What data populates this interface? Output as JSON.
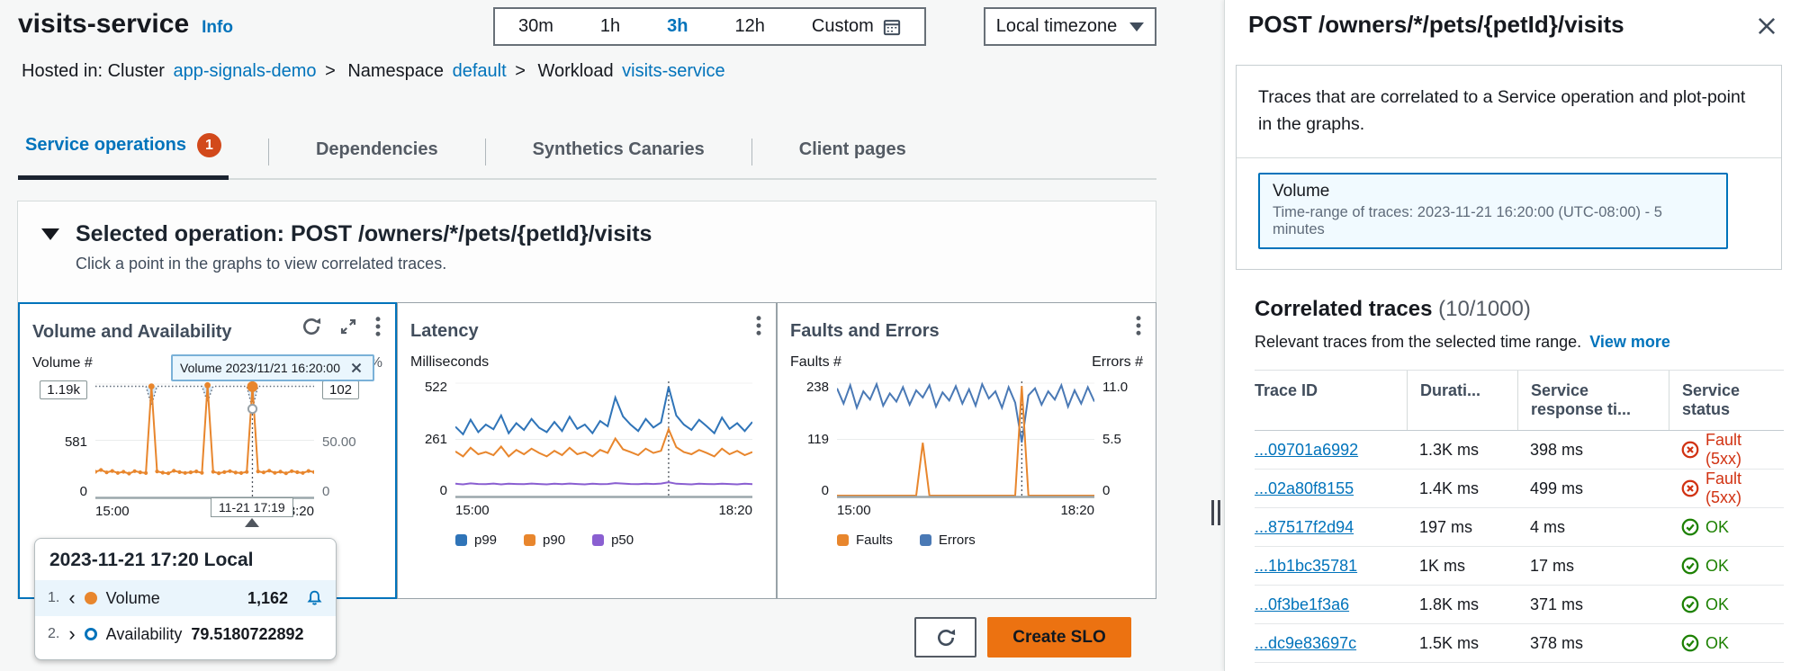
{
  "header": {
    "title": "visits-service",
    "info_link": "Info"
  },
  "time_controls": {
    "ranges": [
      "30m",
      "1h",
      "3h",
      "12h"
    ],
    "active_range": "3h",
    "custom_label": "Custom",
    "timezone_label": "Local timezone"
  },
  "breadcrumb": {
    "hosted_in": "Hosted in: Cluster",
    "cluster": "app-signals-demo",
    "sep": ">",
    "namespace_label": "Namespace",
    "namespace": "default",
    "workload_label": "Workload",
    "workload": "visits-service"
  },
  "tabs": [
    {
      "label": "Service operations",
      "badge": "1"
    },
    {
      "label": "Dependencies"
    },
    {
      "label": "Synthetics Canaries"
    },
    {
      "label": "Client pages"
    }
  ],
  "operation_section": {
    "heading": "Selected operation: POST /owners/*/pets/{petId}/visits",
    "subheading": "Click a point in the graphs to view correlated traces."
  },
  "footer_actions": {
    "create_slo": "Create SLO"
  },
  "tooltip": {
    "header": "2023-11-21 17:20 Local",
    "rows": [
      {
        "index": "1.",
        "chevron": "‹",
        "series": "Volume",
        "value": "1,162"
      },
      {
        "index": "2.",
        "chevron": "›",
        "series": "Availability",
        "value": "79.5180722892"
      }
    ]
  },
  "panel": {
    "title": "POST /owners/*/pets/{petId}/visits",
    "description": "Traces that are correlated to a Service operation and plot-point in the graphs.",
    "selection": {
      "metric": "Volume",
      "time_range": "Time-range of traces: 2023-11-21 16:20:00 (UTC-08:00) - 5 minutes"
    },
    "correlated": {
      "heading": "Correlated traces",
      "count": "(10/1000)",
      "subtext": "Relevant traces from the selected time range.",
      "view_more": "View more"
    },
    "table": {
      "columns": [
        "Trace ID",
        "Durati...",
        "Service response ti...",
        "Service status"
      ],
      "rows": [
        {
          "trace_id": "...09701a6992",
          "duration": "1.3K ms",
          "response_time": "398 ms",
          "status": "Fault (5xx)",
          "status_type": "fault"
        },
        {
          "trace_id": "...02a80f8155",
          "duration": "1.4K ms",
          "response_time": "499 ms",
          "status": "Fault (5xx)",
          "status_type": "fault"
        },
        {
          "trace_id": "...87517f2d94",
          "duration": "197 ms",
          "response_time": "4 ms",
          "status": "OK",
          "status_type": "ok"
        },
        {
          "trace_id": "...1b1bc35781",
          "duration": "1K ms",
          "response_time": "17 ms",
          "status": "OK",
          "status_type": "ok"
        },
        {
          "trace_id": "...0f3be1f3a6",
          "duration": "1.8K ms",
          "response_time": "371 ms",
          "status": "OK",
          "status_type": "ok"
        },
        {
          "trace_id": "...dc9e83697c",
          "duration": "1.5K ms",
          "response_time": "378 ms",
          "status": "OK",
          "status_type": "ok"
        }
      ]
    }
  },
  "chart_data": [
    {
      "type": "line",
      "title": "Volume and Availability",
      "ylabel_left": "Volume #",
      "ylabel_right": "Availability %",
      "yleft_ticks": [
        "1.19k",
        "581",
        "0"
      ],
      "yright_ticks": [
        "102",
        "50.00",
        "0"
      ],
      "x_ticks": [
        "15:00",
        "18:20"
      ],
      "annotation_chip": "Volume 2023/11/21 16:20:00",
      "selected_x_label": "11-21 17:19",
      "selected_index": 28,
      "selected_values": {
        "Volume": 1162,
        "Availability": 79.5180722892
      },
      "series": [
        {
          "name": "Volume",
          "color": "#e8862d",
          "ymax": 1190,
          "values": [
            262,
            281,
            255,
            270,
            249,
            262,
            243,
            268,
            256,
            248,
            1165,
            266,
            252,
            246,
            272,
            258,
            249,
            256,
            266,
            250,
            1178,
            262,
            247,
            258,
            268,
            253,
            248,
            260,
            1162,
            266,
            255,
            273,
            250,
            263,
            246,
            268,
            257,
            249,
            270,
            259
          ]
        },
        {
          "name": "Availability",
          "color": "#5f6b7a",
          "ymax": 102,
          "style": "dotted",
          "values": [
            100,
            100,
            100,
            100,
            100,
            100,
            100,
            100,
            100,
            100,
            83,
            100,
            100,
            100,
            100,
            100,
            100,
            100,
            100,
            100,
            86,
            100,
            100,
            100,
            100,
            100,
            100,
            100,
            79.5180722892,
            100,
            100,
            100,
            100,
            100,
            100,
            100,
            100,
            100,
            100,
            100
          ]
        }
      ]
    },
    {
      "type": "line",
      "title": "Latency",
      "ylabel_left": "Milliseconds",
      "yleft_ticks": [
        "522",
        "261",
        "0"
      ],
      "x_ticks": [
        "15:00",
        "18:20"
      ],
      "selected_index": 28,
      "legend": [
        "p99",
        "p90",
        "p50"
      ],
      "series": [
        {
          "name": "p99",
          "color": "#2f74b8",
          "ymax": 522,
          "values": [
            320,
            285,
            352,
            295,
            330,
            308,
            372,
            290,
            336,
            305,
            356,
            315,
            295,
            342,
            300,
            366,
            310,
            330,
            290,
            346,
            322,
            455,
            368,
            330,
            300,
            356,
            316,
            340,
            505,
            372,
            330,
            305,
            352,
            322,
            290,
            362,
            310,
            336,
            300,
            342
          ]
        },
        {
          "name": "p90",
          "color": "#e8862d",
          "ymax": 522,
          "values": [
            205,
            182,
            222,
            192,
            202,
            188,
            228,
            182,
            212,
            192,
            218,
            198,
            182,
            208,
            188,
            222,
            192,
            202,
            182,
            212,
            198,
            265,
            215,
            202,
            188,
            218,
            198,
            208,
            308,
            225,
            202,
            192,
            212,
            198,
            182,
            218,
            192,
            208,
            188,
            202
          ]
        },
        {
          "name": "p50",
          "color": "#8a5fd1",
          "ymax": 522,
          "values": [
            55,
            52,
            57,
            54,
            53,
            56,
            52,
            55,
            54,
            53,
            56,
            54,
            52,
            55,
            53,
            56,
            54,
            52,
            55,
            53,
            54,
            58,
            56,
            54,
            53,
            55,
            54,
            56,
            62,
            55,
            54,
            52,
            55,
            54,
            53,
            55,
            54,
            52,
            55,
            53
          ]
        }
      ]
    },
    {
      "type": "line",
      "title": "Faults and Errors",
      "ylabel_left": "Faults #",
      "ylabel_right": "Errors #",
      "yleft_ticks": [
        "238",
        "119",
        "0"
      ],
      "yright_ticks": [
        "11.0",
        "5.5",
        "0"
      ],
      "x_ticks": [
        "15:00",
        "18:20"
      ],
      "selected_index": 28,
      "legend": [
        "Faults",
        "Errors"
      ],
      "series": [
        {
          "name": "Faults",
          "color": "#e8862d",
          "ymax": 238,
          "values": [
            0,
            0,
            0,
            0,
            0,
            0,
            0,
            0,
            0,
            0,
            0,
            0,
            0,
            112,
            0,
            0,
            0,
            0,
            0,
            0,
            0,
            0,
            0,
            0,
            0,
            0,
            0,
            0,
            232,
            0,
            0,
            0,
            0,
            0,
            0,
            0,
            0,
            0,
            0,
            0
          ]
        },
        {
          "name": "Errors",
          "color": "#4a79b5",
          "ymax": 11,
          "values": [
            10.5,
            9.0,
            10.8,
            8.6,
            10.2,
            9.4,
            10.9,
            8.8,
            10.0,
            9.2,
            10.6,
            8.9,
            10.3,
            9.6,
            10.8,
            8.7,
            10.1,
            9.3,
            10.7,
            9.0,
            10.4,
            8.8,
            10.9,
            9.5,
            10.2,
            8.6,
            10.6,
            9.1,
            5.2,
            9.8,
            10.5,
            8.9,
            10.2,
            9.4,
            10.8,
            8.7,
            10.3,
            9.0,
            10.6,
            9.2
          ]
        }
      ]
    }
  ]
}
